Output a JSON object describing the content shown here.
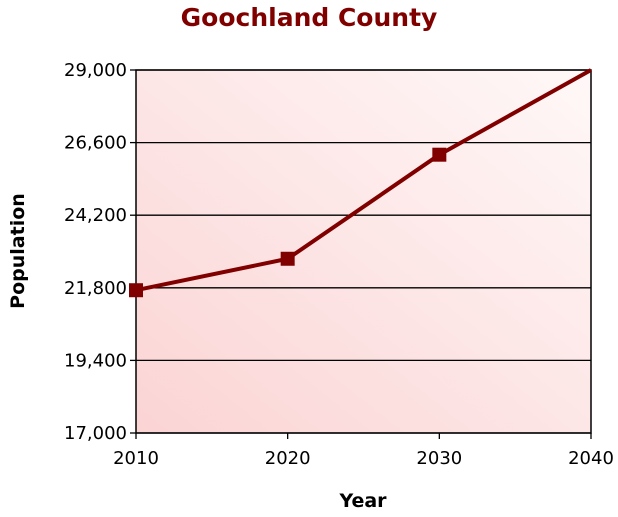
{
  "chart_data": {
    "type": "line",
    "title": "Goochland County",
    "xlabel": "Year",
    "ylabel": "Population",
    "xlim": [
      2010,
      2040
    ],
    "ylim": [
      17000,
      29000
    ],
    "xticks": [
      2010,
      2020,
      2030,
      2040
    ],
    "xtick_labels": [
      "2010",
      "2020",
      "2030",
      "2040"
    ],
    "yticks": [
      17000,
      19400,
      21800,
      24200,
      26600,
      29000
    ],
    "ytick_labels": [
      "17,000",
      "19,400",
      "21,800",
      "24,200",
      "26,600",
      "29,000"
    ],
    "grid": "horizontal",
    "legend": "none",
    "series": [
      {
        "x": [
          2010,
          2020,
          2030,
          2040
        ],
        "values": [
          21720,
          22760,
          26200,
          29000
        ],
        "markers": [
          true,
          true,
          true,
          false
        ],
        "color": "#800000"
      }
    ],
    "colors": {
      "line": "#800000",
      "title": "#800000",
      "plot_bg_light": "#fff6f6",
      "plot_bg_dark": "#fbd6d6"
    }
  }
}
